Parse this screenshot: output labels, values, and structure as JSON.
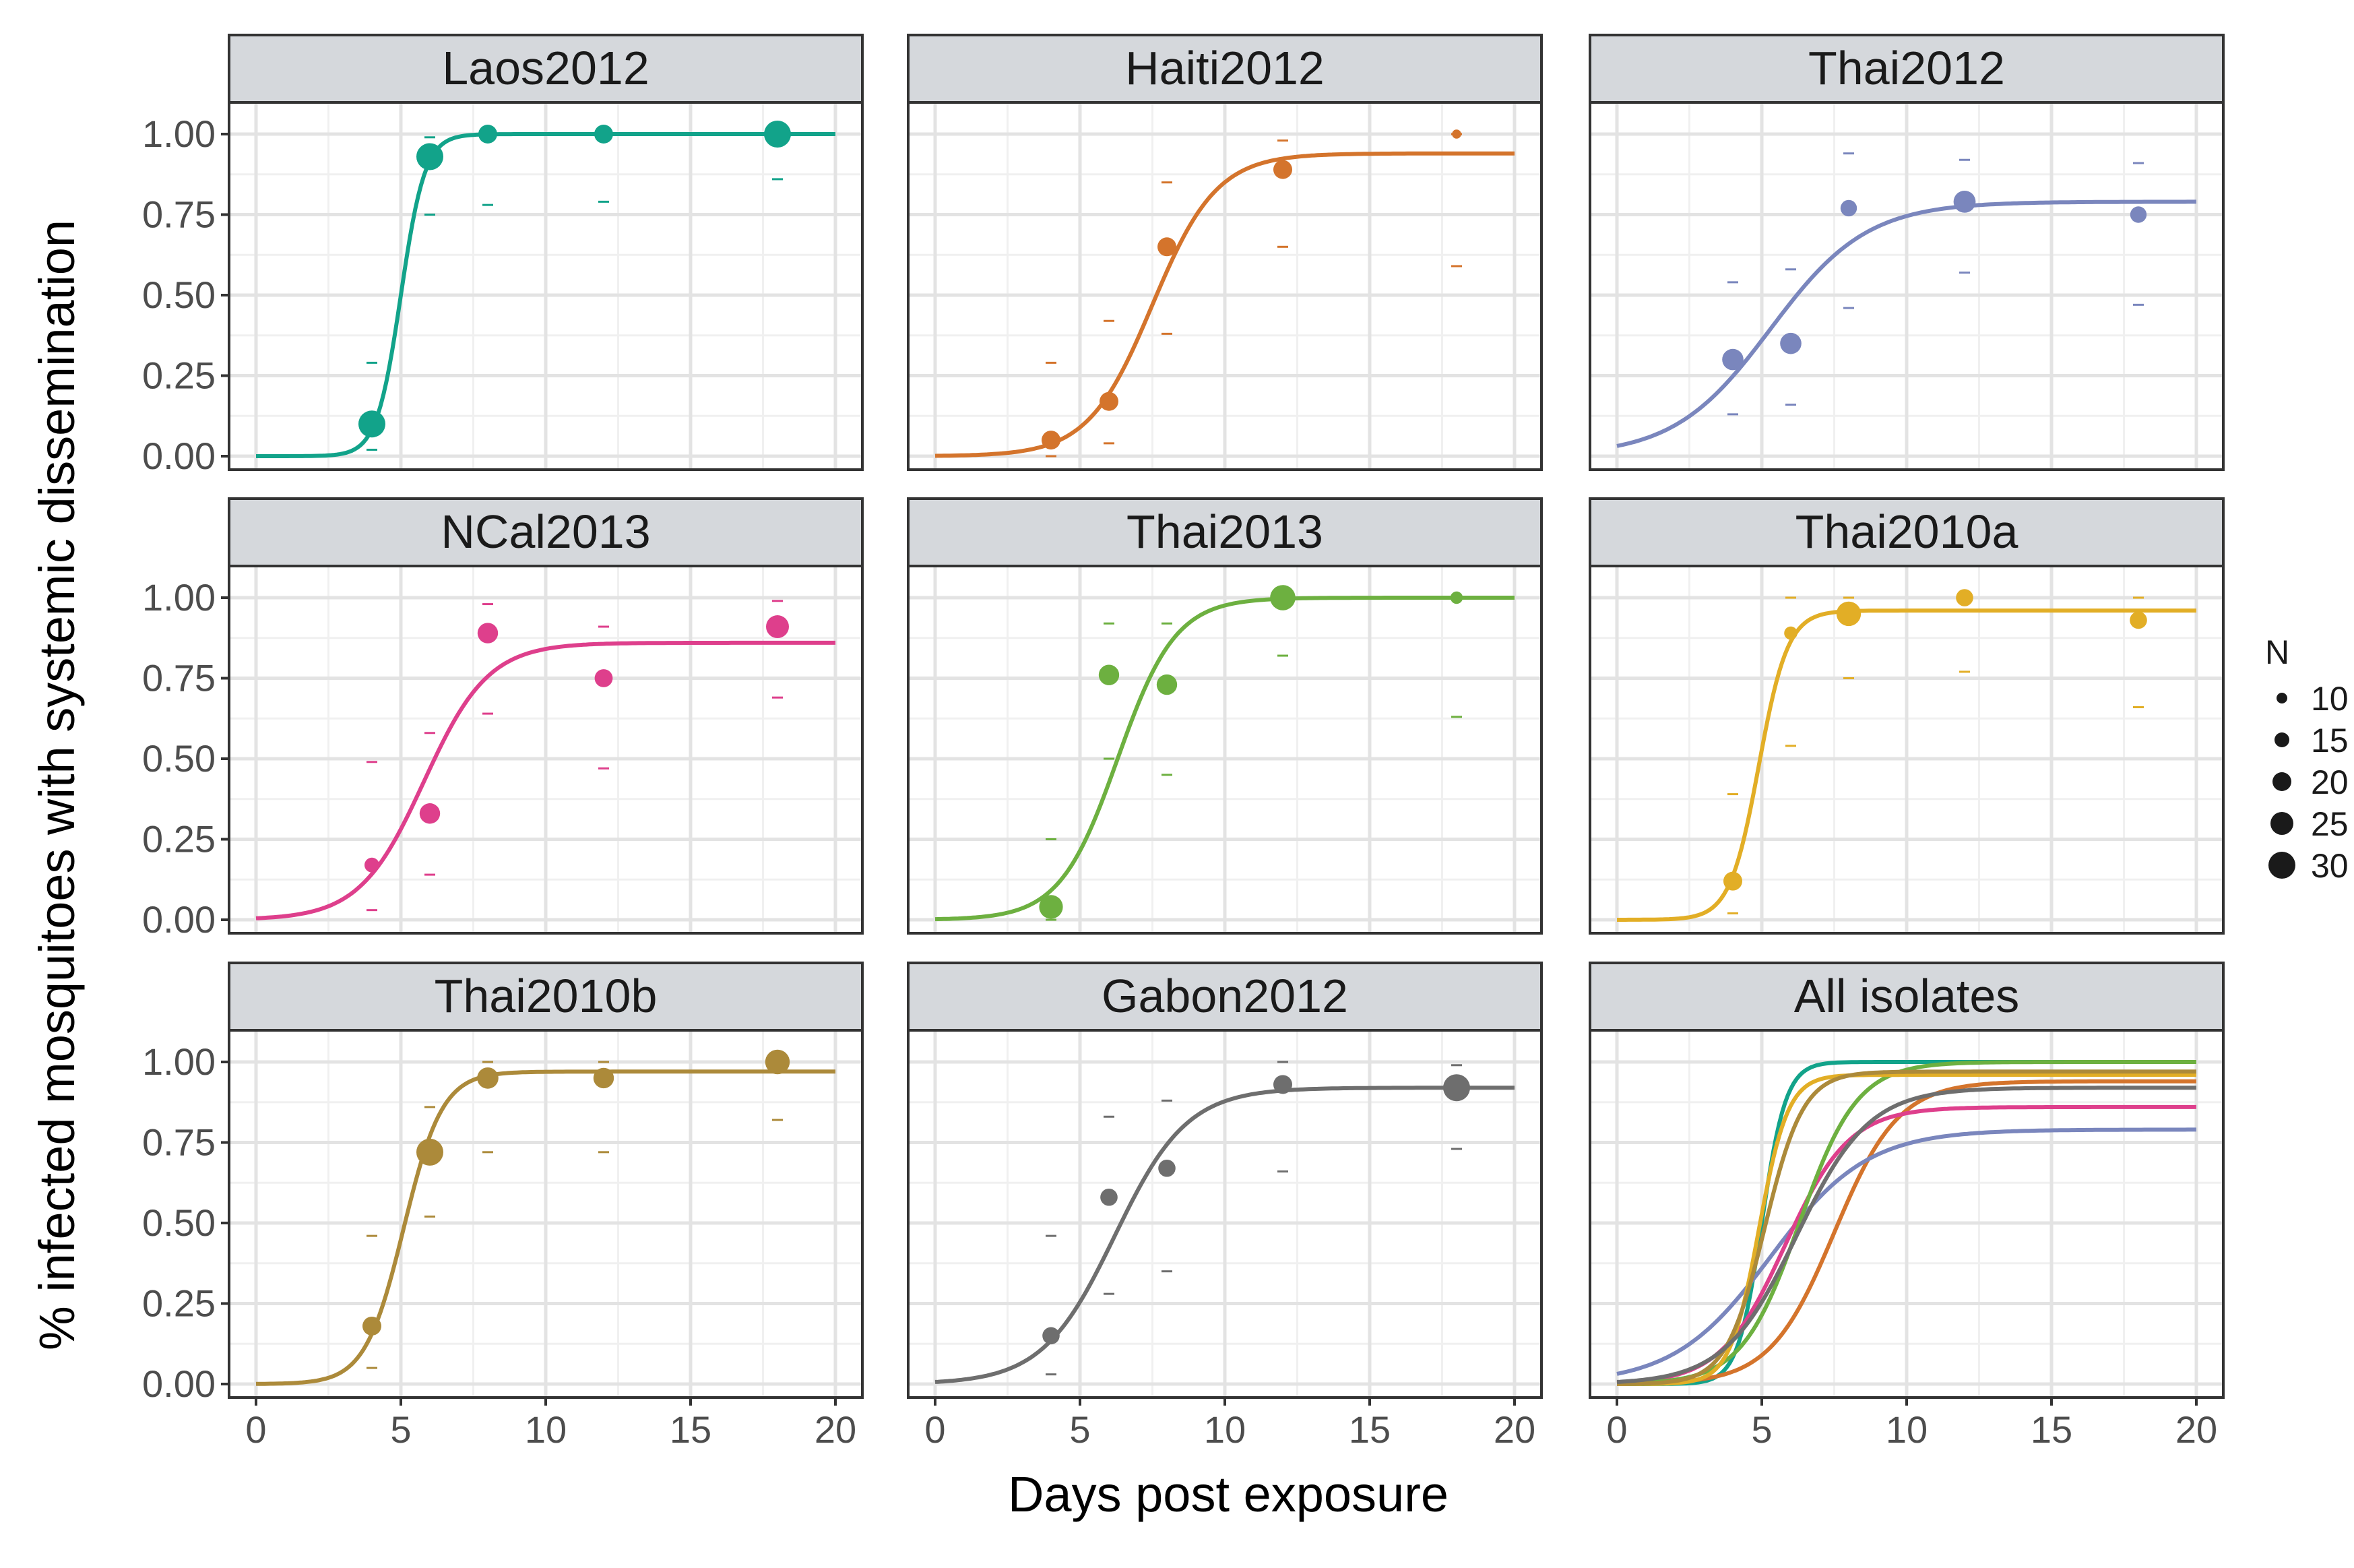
{
  "chart_data": {
    "type": "scatter",
    "layout": "facet_wrap 3x3",
    "xlabel": "Days post exposure",
    "ylabel": "% infected mosquitoes with systemic dissemination",
    "xlim": [
      0,
      20
    ],
    "ylim": [
      0,
      1
    ],
    "xticks": [
      "0",
      "5",
      "10",
      "15",
      "20"
    ],
    "yticks": [
      "0.00",
      "0.25",
      "0.50",
      "0.75",
      "1.00"
    ],
    "grid": true,
    "legend": {
      "title": "N",
      "position": "right",
      "entries": [
        "10",
        "15",
        "20",
        "25",
        "30"
      ],
      "size_values": [
        10,
        15,
        20,
        25,
        30
      ]
    },
    "panels": [
      {
        "title": "Laos2012",
        "color": "#12a38a",
        "curve": {
          "asymptote": 1.0,
          "k": 2.4,
          "x0": 5.0
        },
        "points": [
          {
            "x": 4,
            "y": 0.1,
            "n": 30,
            "lo": 0.02,
            "hi": 0.29
          },
          {
            "x": 6,
            "y": 0.93,
            "n": 30,
            "lo": 0.75,
            "hi": 0.99
          },
          {
            "x": 8,
            "y": 1.0,
            "n": 20,
            "lo": 0.78,
            "hi": 1.0
          },
          {
            "x": 12,
            "y": 1.0,
            "n": 20,
            "lo": 0.79,
            "hi": 1.0
          },
          {
            "x": 18,
            "y": 1.0,
            "n": 30,
            "lo": 0.86,
            "hi": 1.0
          }
        ]
      },
      {
        "title": "Haiti2012",
        "color": "#d4742c",
        "curve": {
          "asymptote": 0.94,
          "k": 0.9,
          "x0": 7.5
        },
        "points": [
          {
            "x": 4,
            "y": 0.05,
            "n": 20,
            "lo": 0.0,
            "hi": 0.29
          },
          {
            "x": 6,
            "y": 0.17,
            "n": 20,
            "lo": 0.04,
            "hi": 0.42
          },
          {
            "x": 8,
            "y": 0.65,
            "n": 20,
            "lo": 0.38,
            "hi": 0.85
          },
          {
            "x": 12,
            "y": 0.89,
            "n": 20,
            "lo": 0.65,
            "hi": 0.98
          },
          {
            "x": 18,
            "y": 1.0,
            "n": 8,
            "lo": 0.59,
            "hi": 1.0
          }
        ]
      },
      {
        "title": "Thai2012",
        "color": "#7a86bd",
        "curve": {
          "asymptote": 0.79,
          "k": 0.6,
          "x0": 5.3
        },
        "points": [
          {
            "x": 4,
            "y": 0.3,
            "n": 23,
            "lo": 0.13,
            "hi": 0.54
          },
          {
            "x": 6,
            "y": 0.35,
            "n": 23,
            "lo": 0.16,
            "hi": 0.58
          },
          {
            "x": 8,
            "y": 0.77,
            "n": 17,
            "lo": 0.46,
            "hi": 0.94
          },
          {
            "x": 12,
            "y": 0.79,
            "n": 24,
            "lo": 0.57,
            "hi": 0.92
          },
          {
            "x": 18,
            "y": 0.75,
            "n": 17,
            "lo": 0.47,
            "hi": 0.91
          }
        ]
      },
      {
        "title": "NCal2013",
        "color": "#de3f8c",
        "curve": {
          "asymptote": 0.86,
          "k": 0.9,
          "x0": 5.8
        },
        "points": [
          {
            "x": 4,
            "y": 0.17,
            "n": 15,
            "lo": 0.03,
            "hi": 0.49
          },
          {
            "x": 6,
            "y": 0.33,
            "n": 22,
            "lo": 0.14,
            "hi": 0.58
          },
          {
            "x": 8,
            "y": 0.89,
            "n": 22,
            "lo": 0.64,
            "hi": 0.98
          },
          {
            "x": 12,
            "y": 0.75,
            "n": 19,
            "lo": 0.47,
            "hi": 0.91
          },
          {
            "x": 18,
            "y": 0.91,
            "n": 25,
            "lo": 0.69,
            "hi": 0.99
          }
        ]
      },
      {
        "title": "Thai2013",
        "color": "#6db040",
        "curve": {
          "asymptote": 1.0,
          "k": 1.0,
          "x0": 6.3
        },
        "points": [
          {
            "x": 4,
            "y": 0.04,
            "n": 26,
            "lo": 0.0,
            "hi": 0.25
          },
          {
            "x": 6,
            "y": 0.76,
            "n": 22,
            "lo": 0.5,
            "hi": 0.92
          },
          {
            "x": 8,
            "y": 0.73,
            "n": 22,
            "lo": 0.45,
            "hi": 0.92
          },
          {
            "x": 12,
            "y": 1.0,
            "n": 28,
            "lo": 0.82,
            "hi": 1.0
          },
          {
            "x": 18,
            "y": 1.0,
            "n": 12,
            "lo": 0.63,
            "hi": 1.0
          }
        ]
      },
      {
        "title": "Thai2010a",
        "color": "#e2ae26",
        "curve": {
          "asymptote": 0.96,
          "k": 2.0,
          "x0": 4.9
        },
        "points": [
          {
            "x": 4,
            "y": 0.12,
            "n": 20,
            "lo": 0.02,
            "hi": 0.39
          },
          {
            "x": 6,
            "y": 0.89,
            "n": 13,
            "lo": 0.54,
            "hi": 1.0
          },
          {
            "x": 8,
            "y": 0.95,
            "n": 27,
            "lo": 0.75,
            "hi": 1.0
          },
          {
            "x": 12,
            "y": 1.0,
            "n": 18,
            "lo": 0.77,
            "hi": 1.0
          },
          {
            "x": 18,
            "y": 0.93,
            "n": 18,
            "lo": 0.66,
            "hi": 1.0
          }
        ]
      },
      {
        "title": "Thai2010b",
        "color": "#ac8a3a",
        "curve": {
          "asymptote": 0.97,
          "k": 1.5,
          "x0": 5.1
        },
        "points": [
          {
            "x": 4,
            "y": 0.18,
            "n": 20,
            "lo": 0.05,
            "hi": 0.46
          },
          {
            "x": 6,
            "y": 0.72,
            "n": 30,
            "lo": 0.52,
            "hi": 0.86
          },
          {
            "x": 8,
            "y": 0.95,
            "n": 23,
            "lo": 0.72,
            "hi": 1.0
          },
          {
            "x": 12,
            "y": 0.95,
            "n": 22,
            "lo": 0.72,
            "hi": 1.0
          },
          {
            "x": 18,
            "y": 1.0,
            "n": 27,
            "lo": 0.82,
            "hi": 1.0
          }
        ]
      },
      {
        "title": "Gabon2012",
        "color": "#6e6e6e",
        "curve": {
          "asymptote": 0.92,
          "k": 0.8,
          "x0": 6.2
        },
        "points": [
          {
            "x": 4,
            "y": 0.15,
            "n": 18,
            "lo": 0.03,
            "hi": 0.46
          },
          {
            "x": 6,
            "y": 0.58,
            "n": 18,
            "lo": 0.28,
            "hi": 0.83
          },
          {
            "x": 8,
            "y": 0.67,
            "n": 18,
            "lo": 0.35,
            "hi": 0.88
          },
          {
            "x": 12,
            "y": 0.93,
            "n": 20,
            "lo": 0.66,
            "hi": 1.0
          },
          {
            "x": 18,
            "y": 0.92,
            "n": 30,
            "lo": 0.73,
            "hi": 0.99
          }
        ]
      },
      {
        "title": "All isolates",
        "color": "#444444",
        "combined": true,
        "points": []
      }
    ]
  }
}
